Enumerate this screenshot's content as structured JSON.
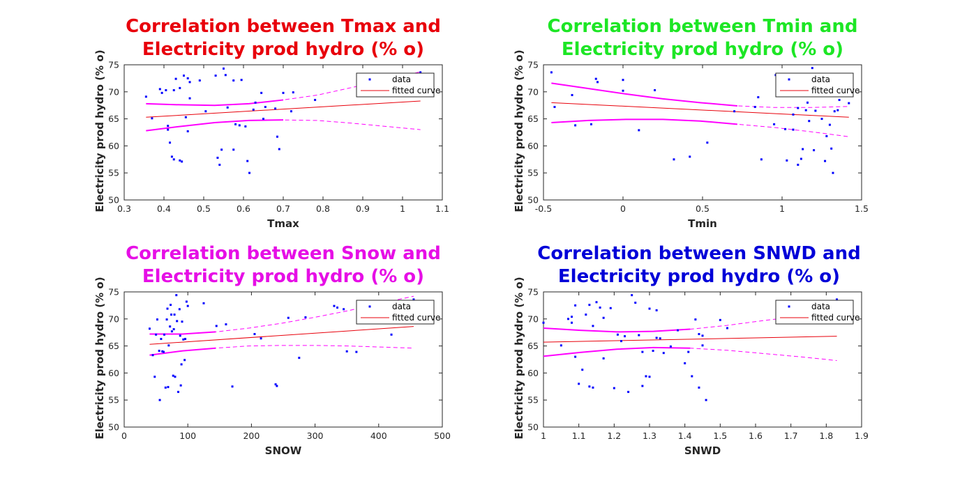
{
  "figure": {
    "ylabel_common": "Electricity prod hydro (% o)",
    "legend": {
      "data_label": "data",
      "fit_label": "fitted curve"
    }
  },
  "chart_data": [
    {
      "type": "scatter",
      "title_line1": "Correlation between Tmax and",
      "title_line2": "Electricity prod hydro (% o)",
      "title_color": "#e8000b",
      "xlabel": "Tmax",
      "ylabel": "Electricity prod hydro (% o)",
      "xlim": [
        0.3,
        1.1
      ],
      "ylim": [
        50,
        75
      ],
      "xticks": [
        0.3,
        0.4,
        0.5,
        0.6,
        0.7,
        0.8,
        0.9,
        1,
        1.1
      ],
      "yticks": [
        50,
        55,
        60,
        65,
        70,
        75
      ],
      "x_range": [
        0.355,
        1.045
      ],
      "fit": [
        65.3,
        68.3
      ],
      "band_upper": [
        67.8,
        67.6,
        67.5,
        67.8,
        68.5,
        69.4,
        70.8,
        72.2,
        73.7
      ],
      "band_lower": [
        62.8,
        63.6,
        64.3,
        64.7,
        64.8,
        64.7,
        64.2,
        63.6,
        63.0
      ],
      "band_solid_to": 0.77,
      "points": [
        [
          0.355,
          69.1
        ],
        [
          0.37,
          65.1
        ],
        [
          0.39,
          70.5
        ],
        [
          0.395,
          69.8
        ],
        [
          0.405,
          70.3
        ],
        [
          0.41,
          63.7
        ],
        [
          0.41,
          63.0
        ],
        [
          0.415,
          60.6
        ],
        [
          0.42,
          58.0
        ],
        [
          0.425,
          57.5
        ],
        [
          0.425,
          70.3
        ],
        [
          0.43,
          72.4
        ],
        [
          0.44,
          70.7
        ],
        [
          0.44,
          57.3
        ],
        [
          0.445,
          57.1
        ],
        [
          0.45,
          73.0
        ],
        [
          0.455,
          65.3
        ],
        [
          0.46,
          62.7
        ],
        [
          0.46,
          72.5
        ],
        [
          0.465,
          71.8
        ],
        [
          0.465,
          68.8
        ],
        [
          0.49,
          72.1
        ],
        [
          0.505,
          66.4
        ],
        [
          0.53,
          73.0
        ],
        [
          0.535,
          57.8
        ],
        [
          0.54,
          56.5
        ],
        [
          0.545,
          59.3
        ],
        [
          0.55,
          74.3
        ],
        [
          0.555,
          73.1
        ],
        [
          0.56,
          67.1
        ],
        [
          0.575,
          72.1
        ],
        [
          0.575,
          59.3
        ],
        [
          0.58,
          64.0
        ],
        [
          0.59,
          63.8
        ],
        [
          0.595,
          72.2
        ],
        [
          0.605,
          63.6
        ],
        [
          0.61,
          57.2
        ],
        [
          0.615,
          55.0
        ],
        [
          0.625,
          66.7
        ],
        [
          0.63,
          68.0
        ],
        [
          0.645,
          69.8
        ],
        [
          0.65,
          65.0
        ],
        [
          0.655,
          67.2
        ],
        [
          0.68,
          66.9
        ],
        [
          0.685,
          61.7
        ],
        [
          0.69,
          59.4
        ],
        [
          0.7,
          69.8
        ],
        [
          0.72,
          66.4
        ],
        [
          0.725,
          69.9
        ],
        [
          0.78,
          68.5
        ],
        [
          1.045,
          73.6
        ]
      ]
    },
    {
      "type": "scatter",
      "title_line1": "Correlation between Tmin and",
      "title_line2": "Electricity prod hydro (% o)",
      "title_color": "#1de625",
      "xlabel": "Tmin",
      "ylabel": "Electricity prod hydro (% o)",
      "xlim": [
        -0.5,
        1.5
      ],
      "ylim": [
        50,
        75
      ],
      "xticks": [
        -0.5,
        0,
        0.5,
        1,
        1.5
      ],
      "yticks": [
        50,
        55,
        60,
        65,
        70,
        75
      ],
      "x_range": [
        -0.45,
        1.42
      ],
      "fit": [
        68.0,
        65.3
      ],
      "band_upper": [
        71.6,
        70.6,
        69.6,
        68.7,
        68.0,
        67.4,
        67.1,
        67.1,
        67.3
      ],
      "band_lower": [
        64.3,
        64.7,
        64.9,
        64.9,
        64.6,
        64.0,
        63.4,
        62.6,
        61.7
      ],
      "band_solid_to": 0.9,
      "points": [
        [
          -0.45,
          73.6
        ],
        [
          -0.43,
          67.2
        ],
        [
          -0.32,
          69.4
        ],
        [
          -0.3,
          63.8
        ],
        [
          -0.17,
          72.4
        ],
        [
          -0.16,
          71.8
        ],
        [
          -0.2,
          64.0
        ],
        [
          0.0,
          72.2
        ],
        [
          0.0,
          70.2
        ],
        [
          0.1,
          62.9
        ],
        [
          0.2,
          70.3
        ],
        [
          0.32,
          57.5
        ],
        [
          0.42,
          58.0
        ],
        [
          0.53,
          60.6
        ],
        [
          0.7,
          66.4
        ],
        [
          0.83,
          67.2
        ],
        [
          0.85,
          69.0
        ],
        [
          0.87,
          57.5
        ],
        [
          0.95,
          64.0
        ],
        [
          0.96,
          73.1
        ],
        [
          1.02,
          63.1
        ],
        [
          1.03,
          57.3
        ],
        [
          1.05,
          69.8
        ],
        [
          1.07,
          63.0
        ],
        [
          1.07,
          65.8
        ],
        [
          1.1,
          67.0
        ],
        [
          1.1,
          56.5
        ],
        [
          1.12,
          57.6
        ],
        [
          1.13,
          59.4
        ],
        [
          1.15,
          66.6
        ],
        [
          1.16,
          68.0
        ],
        [
          1.17,
          64.6
        ],
        [
          1.19,
          74.4
        ],
        [
          1.2,
          59.2
        ],
        [
          1.21,
          66.5
        ],
        [
          1.25,
          65.0
        ],
        [
          1.27,
          57.2
        ],
        [
          1.28,
          61.8
        ],
        [
          1.3,
          63.9
        ],
        [
          1.31,
          59.5
        ],
        [
          1.32,
          55.0
        ],
        [
          1.33,
          66.4
        ],
        [
          1.35,
          66.6
        ],
        [
          1.36,
          68.5
        ],
        [
          1.4,
          73.0
        ],
        [
          1.42,
          67.9
        ]
      ]
    },
    {
      "type": "scatter",
      "title_line1": "Correlation between Snow and",
      "title_line2": "Electricity prod hydro (% o)",
      "title_color": "#e60ee6",
      "xlabel": "SNOW",
      "ylabel": "Electricity prod hydro (% o)",
      "xlim": [
        0,
        500
      ],
      "ylim": [
        50,
        75
      ],
      "xticks": [
        0,
        100,
        200,
        300,
        400,
        500
      ],
      "yticks": [
        50,
        55,
        60,
        65,
        70,
        75
      ],
      "x_range": [
        40,
        455
      ],
      "fit": [
        65.3,
        68.6
      ],
      "band_upper": [
        67.2,
        67.2,
        67.6,
        68.3,
        69.2,
        70.3,
        71.5,
        72.9,
        74.2
      ],
      "band_lower": [
        63.3,
        64.1,
        64.6,
        65.0,
        65.1,
        65.1,
        65.0,
        64.8,
        64.6
      ],
      "band_solid_to": 160,
      "points": [
        [
          40,
          68.2
        ],
        [
          45,
          63.3
        ],
        [
          48,
          59.3
        ],
        [
          50,
          67.1
        ],
        [
          52,
          69.9
        ],
        [
          55,
          64.1
        ],
        [
          56,
          55.0
        ],
        [
          58,
          66.3
        ],
        [
          60,
          64.0
        ],
        [
          62,
          63.9
        ],
        [
          63,
          67.1
        ],
        [
          65,
          57.3
        ],
        [
          67,
          69.9
        ],
        [
          68,
          71.9
        ],
        [
          69,
          57.4
        ],
        [
          70,
          65.1
        ],
        [
          72,
          68.6
        ],
        [
          73,
          72.6
        ],
        [
          74,
          70.8
        ],
        [
          75,
          67.7
        ],
        [
          77,
          59.5
        ],
        [
          78,
          68.1
        ],
        [
          79,
          70.8
        ],
        [
          80,
          59.3
        ],
        [
          82,
          74.4
        ],
        [
          83,
          69.6
        ],
        [
          85,
          56.5
        ],
        [
          87,
          71.8
        ],
        [
          88,
          66.9
        ],
        [
          89,
          57.7
        ],
        [
          90,
          61.6
        ],
        [
          91,
          69.5
        ],
        [
          93,
          66.2
        ],
        [
          95,
          62.4
        ],
        [
          96,
          66.3
        ],
        [
          98,
          73.2
        ],
        [
          100,
          72.4
        ],
        [
          125,
          72.9
        ],
        [
          145,
          68.7
        ],
        [
          160,
          69.0
        ],
        [
          170,
          57.5
        ],
        [
          205,
          67.2
        ],
        [
          215,
          66.4
        ],
        [
          238,
          57.9
        ],
        [
          240,
          57.6
        ],
        [
          258,
          70.2
        ],
        [
          275,
          62.8
        ],
        [
          285,
          70.3
        ],
        [
          330,
          72.4
        ],
        [
          335,
          72.1
        ],
        [
          345,
          71.8
        ],
        [
          350,
          64.0
        ],
        [
          365,
          63.9
        ],
        [
          420,
          67.1
        ],
        [
          455,
          73.6
        ]
      ]
    },
    {
      "type": "scatter",
      "title_line1": "Correlation between SNWD and",
      "title_line2": "Electricity prod hydro (% o)",
      "title_color": "#0000d8",
      "xlabel": "SNWD",
      "ylabel": "Electricity prod hydro (% o)",
      "xlim": [
        1,
        1.9
      ],
      "ylim": [
        50,
        75
      ],
      "xticks": [
        1,
        1.1,
        1.2,
        1.3,
        1.4,
        1.5,
        1.6,
        1.7,
        1.8,
        1.9
      ],
      "yticks": [
        50,
        55,
        60,
        65,
        70,
        75
      ],
      "x_range": [
        1.0,
        1.83
      ],
      "fit": [
        65.7,
        66.8
      ],
      "band_upper": [
        68.3,
        67.9,
        67.6,
        67.7,
        68.1,
        68.8,
        69.7,
        70.5,
        71.5
      ],
      "band_lower": [
        63.1,
        63.8,
        64.4,
        64.7,
        64.6,
        64.2,
        63.6,
        63.0,
        62.3
      ],
      "band_solid_to": 1.47,
      "points": [
        [
          1.0,
          69.3
        ],
        [
          1.05,
          65.1
        ],
        [
          1.07,
          70.0
        ],
        [
          1.08,
          69.3
        ],
        [
          1.08,
          70.4
        ],
        [
          1.09,
          63.0
        ],
        [
          1.09,
          72.5
        ],
        [
          1.1,
          58.0
        ],
        [
          1.11,
          60.6
        ],
        [
          1.12,
          70.8
        ],
        [
          1.13,
          72.6
        ],
        [
          1.13,
          57.5
        ],
        [
          1.14,
          68.7
        ],
        [
          1.14,
          57.3
        ],
        [
          1.15,
          73.1
        ],
        [
          1.16,
          72.1
        ],
        [
          1.17,
          70.2
        ],
        [
          1.17,
          62.7
        ],
        [
          1.19,
          72.0
        ],
        [
          1.2,
          57.2
        ],
        [
          1.21,
          67.1
        ],
        [
          1.22,
          65.9
        ],
        [
          1.23,
          66.8
        ],
        [
          1.24,
          56.5
        ],
        [
          1.25,
          74.4
        ],
        [
          1.26,
          73.0
        ],
        [
          1.27,
          67.0
        ],
        [
          1.28,
          63.9
        ],
        [
          1.28,
          57.6
        ],
        [
          1.29,
          59.4
        ],
        [
          1.3,
          71.9
        ],
        [
          1.3,
          59.3
        ],
        [
          1.31,
          64.1
        ],
        [
          1.32,
          66.5
        ],
        [
          1.32,
          71.6
        ],
        [
          1.33,
          66.4
        ],
        [
          1.34,
          63.7
        ],
        [
          1.36,
          64.9
        ],
        [
          1.38,
          67.9
        ],
        [
          1.4,
          61.8
        ],
        [
          1.41,
          63.9
        ],
        [
          1.42,
          59.4
        ],
        [
          1.43,
          69.9
        ],
        [
          1.44,
          57.3
        ],
        [
          1.44,
          67.2
        ],
        [
          1.45,
          66.9
        ],
        [
          1.46,
          55.0
        ],
        [
          1.45,
          65.1
        ],
        [
          1.5,
          69.8
        ],
        [
          1.52,
          68.3
        ],
        [
          1.83,
          73.6
        ]
      ]
    }
  ]
}
